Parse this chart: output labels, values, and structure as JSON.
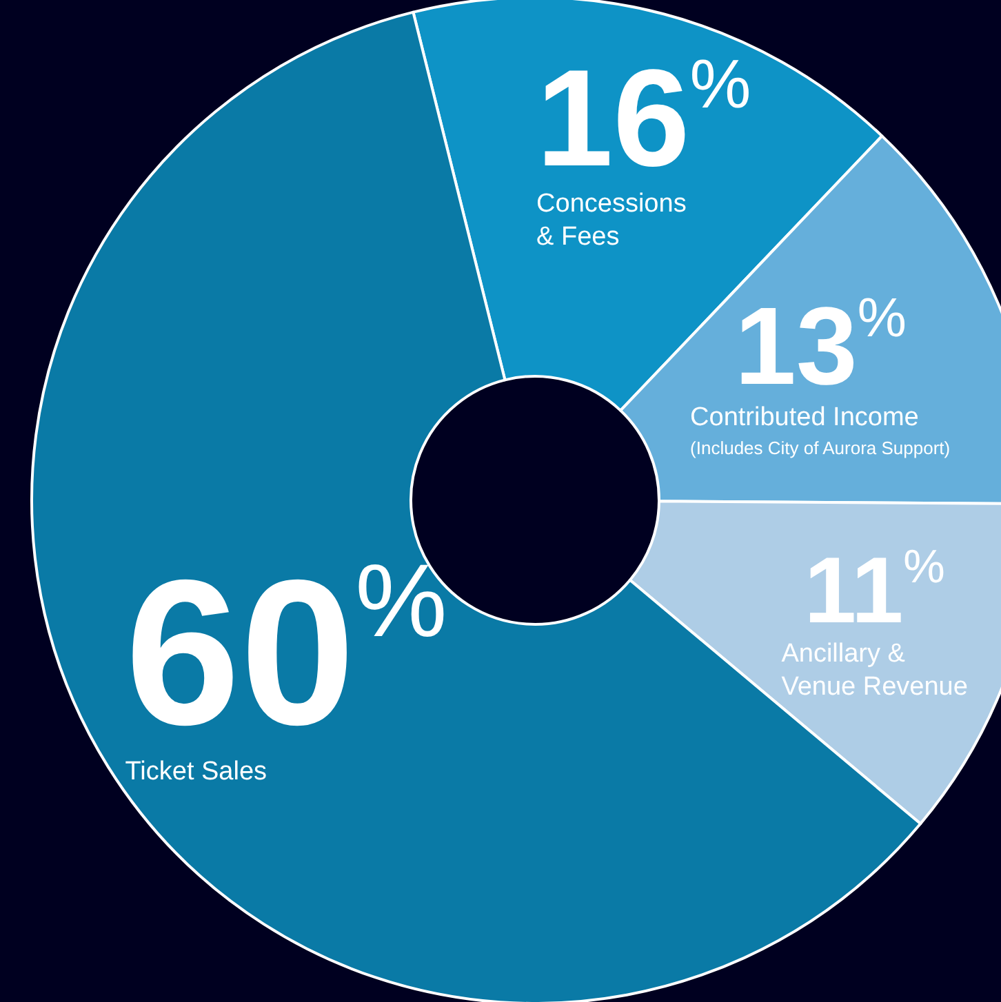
{
  "chart_data": {
    "type": "donut",
    "categories": [
      "Concessions\n& Fees",
      "Contributed Income",
      "Ancillary &\nVenue Revenue",
      "Ticket Sales"
    ],
    "values": [
      16,
      13,
      11,
      60
    ],
    "colors": [
      "#0e93c6",
      "#65afdb",
      "#aecde6",
      "#0a7aa6"
    ],
    "value_labels": [
      "16%",
      "13%",
      "11%",
      "60%"
    ],
    "legend": false,
    "annotations": [
      "(Includes City of Aurora Support)"
    ]
  }
}
